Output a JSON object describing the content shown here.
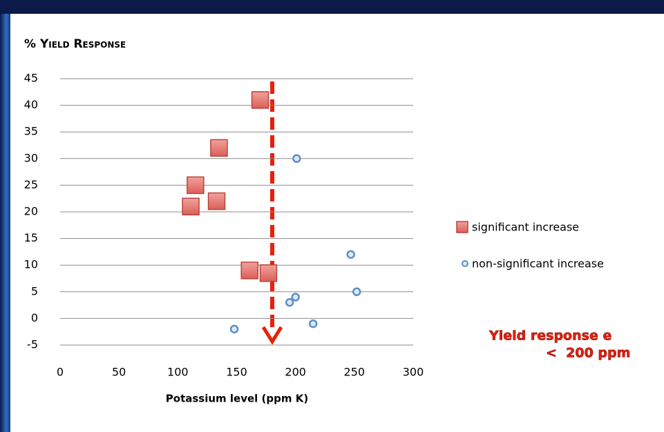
{
  "chart_data": {
    "type": "scatter",
    "title": "% Yield Response",
    "x_label": "Potassium level (ppm K)",
    "xlim": [
      0,
      300
    ],
    "xticks": [
      0,
      50,
      100,
      150,
      200,
      250,
      300
    ],
    "ylim": [
      -5,
      45
    ],
    "yticks": [
      -5,
      0,
      5,
      10,
      15,
      20,
      25,
      30,
      35,
      40,
      45
    ],
    "grid": true,
    "series": [
      {
        "name": "significant increase",
        "color": "#e0706b",
        "marker": "square",
        "x": [
          170,
          135,
          115,
          133,
          111,
          161,
          177
        ],
        "values": [
          41,
          32,
          25,
          22,
          21,
          9,
          8.5
        ]
      },
      {
        "name": "non-significant increase",
        "color": "#5b8fc7",
        "marker": "circle",
        "x": [
          201,
          247,
          252,
          195,
          200,
          215,
          148
        ],
        "values": [
          30,
          12,
          5,
          3,
          4,
          -1,
          -2
        ]
      }
    ],
    "annotations": [
      "Yield response e",
      "<  200 ppm"
    ]
  }
}
